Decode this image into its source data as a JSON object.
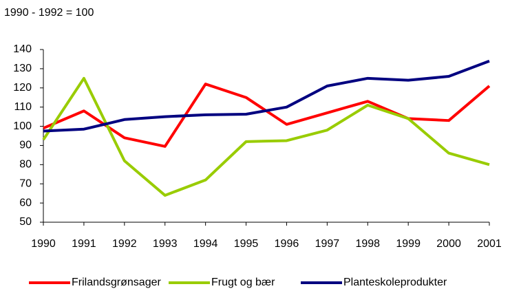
{
  "chart_data": {
    "type": "line",
    "subtitle": "1990 - 1992 = 100",
    "categories": [
      "1990",
      "1991",
      "1992",
      "1993",
      "1994",
      "1995",
      "1996",
      "1997",
      "1998",
      "1999",
      "2000",
      "2001"
    ],
    "series": [
      {
        "name": "Frilandsgrønsager",
        "color": "#ff0000",
        "values": [
          99,
          108,
          94,
          89.5,
          122,
          115,
          101,
          107,
          113,
          104,
          103,
          121
        ]
      },
      {
        "name": "Frugt og bær",
        "color": "#99cc00",
        "values": [
          93,
          125,
          82,
          64,
          72,
          92,
          92.5,
          98,
          111,
          104,
          86,
          80
        ]
      },
      {
        "name": "Planteskoleprodukter",
        "color": "#000080",
        "values": [
          97.5,
          98.5,
          103.5,
          105,
          106,
          106.3,
          110,
          121,
          125,
          124,
          126,
          134
        ]
      }
    ],
    "ylim": [
      50,
      140
    ],
    "yticks": [
      50,
      60,
      70,
      80,
      90,
      100,
      110,
      120,
      130,
      140
    ],
    "grid": false,
    "legend": "bottom"
  }
}
